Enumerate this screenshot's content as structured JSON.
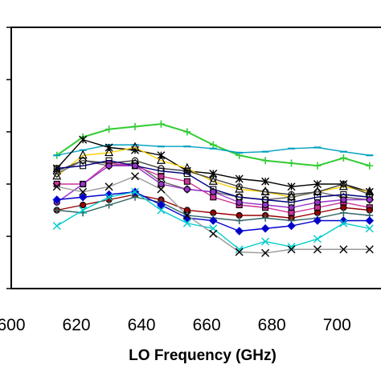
{
  "chart_data": {
    "type": "line",
    "title": "",
    "xlabel": "LO Frequency (GHz)",
    "ylabel": "",
    "x_ticks": [
      "600",
      "620",
      "640",
      "660",
      "680",
      "700"
    ],
    "xlim": [
      600,
      714
    ],
    "ylim": [
      0,
      5
    ],
    "grid": false,
    "legend": "none",
    "x": [
      614,
      622,
      630,
      638,
      646,
      654,
      662,
      670,
      678,
      686,
      694,
      702,
      710
    ],
    "series": [
      {
        "color": "#33cc33",
        "marker": "plus",
        "values": [
          2.55,
          2.9,
          3.05,
          3.1,
          3.15,
          3.0,
          2.75,
          2.55,
          2.45,
          2.4,
          2.35,
          2.5,
          2.35
        ]
      },
      {
        "color": "#00a0c0",
        "marker": "dash",
        "values": [
          2.55,
          2.65,
          2.75,
          2.75,
          2.72,
          2.72,
          2.68,
          2.6,
          2.62,
          2.68,
          2.7,
          2.62,
          2.55
        ]
      },
      {
        "color": "#000000",
        "marker": "asterisk",
        "values": [
          2.3,
          2.85,
          2.7,
          2.65,
          2.55,
          2.25,
          2.2,
          2.1,
          2.05,
          1.95,
          2.0,
          2.0,
          1.85
        ]
      },
      {
        "color": "#ffd000",
        "marker": "triangle",
        "values": [
          2.15,
          2.55,
          2.6,
          2.7,
          2.45,
          2.3,
          2.05,
          1.9,
          1.85,
          1.75,
          1.85,
          1.95,
          1.85
        ]
      },
      {
        "color": "#444444",
        "marker": "circle",
        "values": [
          2.25,
          2.45,
          2.4,
          2.45,
          2.3,
          2.25,
          2.1,
          1.95,
          1.85,
          1.8,
          1.85,
          2.0,
          1.8
        ]
      },
      {
        "color": "#666666",
        "marker": "diamond",
        "values": [
          2.2,
          2.45,
          2.35,
          2.4,
          2.05,
          1.9,
          1.85,
          1.75,
          1.7,
          1.75,
          1.85,
          1.75,
          1.7
        ]
      },
      {
        "color": "#cc3399",
        "marker": "square",
        "values": [
          2.0,
          2.0,
          2.4,
          2.35,
          2.15,
          2.05,
          1.75,
          1.6,
          1.55,
          1.45,
          1.55,
          1.65,
          1.55
        ]
      },
      {
        "color": "#000080",
        "marker": "square",
        "values": [
          2.3,
          2.35,
          2.45,
          2.35,
          2.25,
          2.2,
          1.9,
          1.75,
          1.7,
          1.65,
          1.75,
          1.8,
          1.75
        ]
      },
      {
        "color": "#9933cc",
        "marker": "circle",
        "values": [
          1.65,
          2.0,
          2.35,
          2.35,
          2.0,
          1.9,
          1.85,
          1.65,
          1.6,
          1.55,
          1.65,
          1.7,
          1.7
        ]
      },
      {
        "color": "#990000",
        "marker": "circle",
        "values": [
          1.5,
          1.6,
          1.7,
          1.8,
          1.7,
          1.5,
          1.45,
          1.4,
          1.4,
          1.35,
          1.45,
          1.55,
          1.5
        ]
      },
      {
        "color": "#336666",
        "marker": "plus",
        "values": [
          1.5,
          1.45,
          1.6,
          1.75,
          1.65,
          1.4,
          1.35,
          1.3,
          1.35,
          1.3,
          1.35,
          1.45,
          1.4
        ]
      },
      {
        "color": "#0000cc",
        "marker": "diamond",
        "values": [
          1.7,
          1.75,
          1.8,
          1.85,
          1.6,
          1.35,
          1.3,
          1.1,
          1.15,
          1.2,
          1.3,
          1.3,
          1.3
        ]
      },
      {
        "color": "#00cccc",
        "marker": "x",
        "values": [
          1.2,
          1.5,
          1.75,
          1.85,
          1.5,
          1.25,
          1.15,
          0.75,
          0.9,
          0.8,
          0.95,
          1.25,
          1.15
        ]
      },
      {
        "color": "#999999",
        "marker": "x",
        "values": [
          1.95,
          1.85,
          1.95,
          2.15,
          1.9,
          1.4,
          1.05,
          0.7,
          0.68,
          0.75,
          0.75,
          0.75,
          0.75
        ]
      }
    ]
  }
}
